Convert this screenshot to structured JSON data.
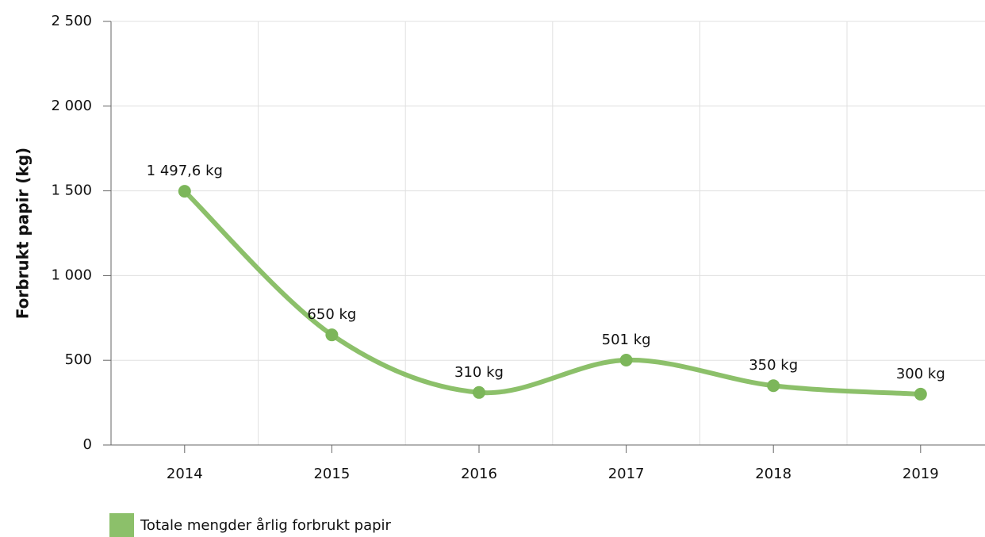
{
  "chart_data": {
    "type": "line",
    "categories": [
      "2014",
      "2015",
      "2016",
      "2017",
      "2018",
      "2019"
    ],
    "series": [
      {
        "name": "Totale mengder årlig forbrukt papir",
        "color": "#8cc06a",
        "values": [
          1497.6,
          650,
          310,
          501,
          350,
          300
        ],
        "value_labels": [
          "1 497,6 kg",
          "650 kg",
          "310 kg",
          "501 kg",
          "350 kg",
          "300 kg"
        ]
      }
    ],
    "y_label": "Forbrukt papir (kg)",
    "ylim": [
      0,
      2500
    ],
    "yticks": [
      0,
      500,
      {
        "value": 1000,
        "label": "1 000"
      },
      {
        "value": 1500,
        "label": "1 500"
      },
      {
        "value": 2000,
        "label": "2 000"
      },
      {
        "value": 2500,
        "label": "2 500"
      }
    ],
    "grid": true,
    "legend": "bottom-left"
  }
}
